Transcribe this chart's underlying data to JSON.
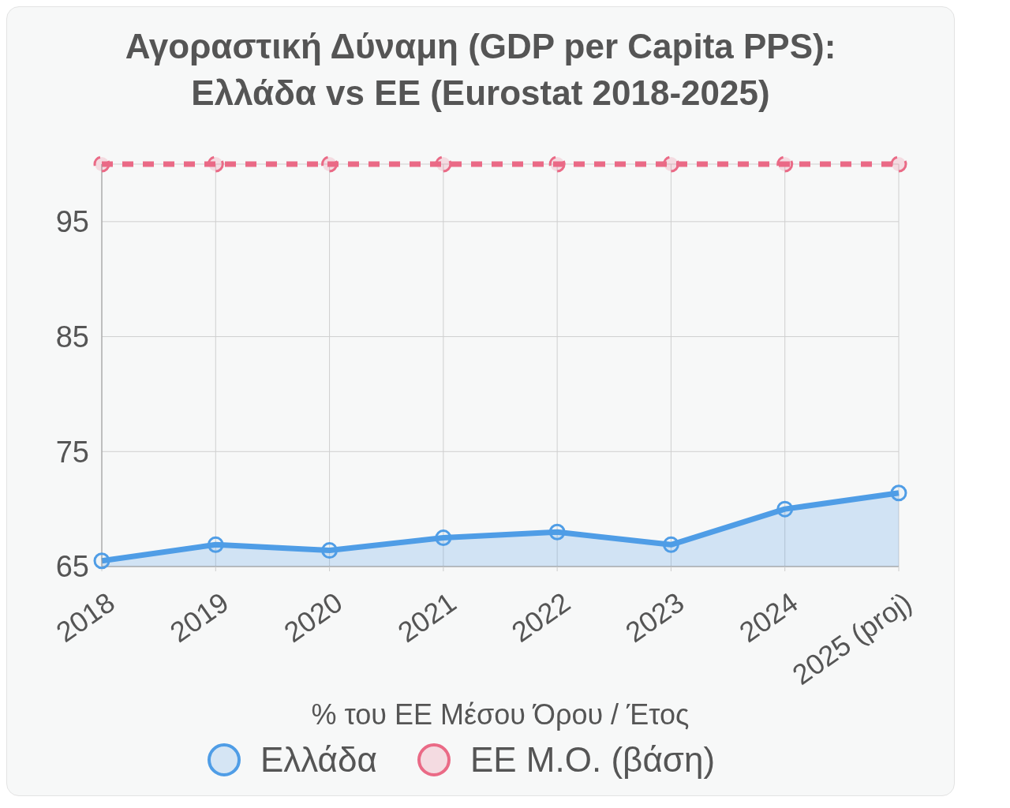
{
  "chart_data": {
    "type": "line",
    "title": "Αγοραστική Δύναμη (GDP per Capita PPS): Ελλάδα vs ΕΕ (Eurostat 2018-2025)",
    "xlabel": "% του ΕΕ Μέσου Όρου / Έτος",
    "categories": [
      "2018",
      "2019",
      "2020",
      "2021",
      "2022",
      "2023",
      "2024",
      "2025 (proj)"
    ],
    "series": [
      {
        "name": "Ελλάδα",
        "type": "area",
        "color": "#4f9de6",
        "values": [
          65.5,
          66.9,
          66.4,
          67.5,
          68.0,
          66.9,
          70.0,
          71.4
        ]
      },
      {
        "name": "ΕΕ Μ.Ο. (βάση)",
        "line_style": "dashed",
        "color": "#ea6a86",
        "values": [
          100,
          100,
          100,
          100,
          100,
          100,
          100,
          100
        ]
      }
    ],
    "ylim": [
      65,
      100
    ],
    "yticks": [
      65,
      75,
      85,
      95
    ],
    "grid": true,
    "legend": "bottom",
    "marker": "circle"
  }
}
